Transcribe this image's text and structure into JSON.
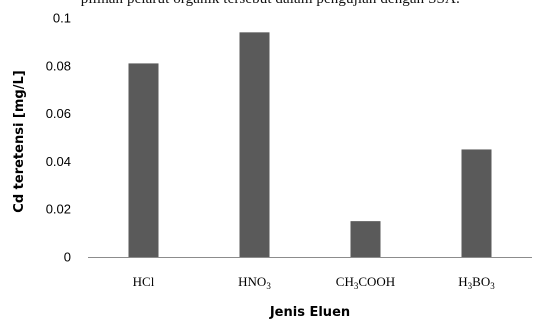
{
  "header": {
    "text": "pilihan pelarut organik tersebut dalam pengujian dengan SSA:"
  },
  "chart_data": {
    "type": "bar",
    "categories": [
      {
        "base": "HCl",
        "parts": [
          {
            "t": "HCl",
            "sub": false
          }
        ]
      },
      {
        "base": "HNO3",
        "parts": [
          {
            "t": "HNO",
            "sub": false
          },
          {
            "t": "3",
            "sub": true
          }
        ]
      },
      {
        "base": "CH3COOH",
        "parts": [
          {
            "t": "CH",
            "sub": false
          },
          {
            "t": "3",
            "sub": true
          },
          {
            "t": "COOH",
            "sub": false
          }
        ]
      },
      {
        "base": "H3BO3",
        "parts": [
          {
            "t": "H",
            "sub": false
          },
          {
            "t": "3",
            "sub": true
          },
          {
            "t": "BO",
            "sub": false
          },
          {
            "t": "3",
            "sub": true
          }
        ]
      }
    ],
    "values": [
      0.081,
      0.094,
      0.015,
      0.045
    ],
    "xlabel": "Jenis Eluen",
    "ylabel": "Cd teretensi [mg/L]",
    "ylim": [
      0,
      0.1
    ],
    "yticks": [
      "0",
      "0.02",
      "0.04",
      "0.06",
      "0.08",
      "0.1"
    ],
    "grid": false,
    "bar_color": "#5a5a5a"
  }
}
